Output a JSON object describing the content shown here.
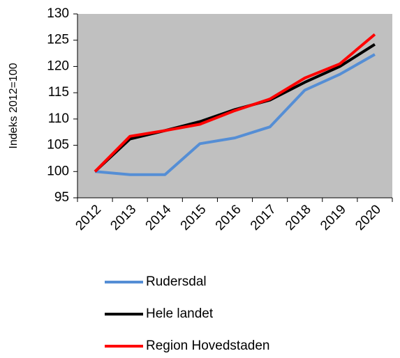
{
  "chart_data": {
    "type": "line",
    "y_label": "Indeks 2012=100",
    "categories": [
      "2012",
      "2013",
      "2014",
      "2015",
      "2016",
      "2017",
      "2018",
      "2019",
      "2020"
    ],
    "series": [
      {
        "name": "Rudersdal",
        "color": "#558ed5",
        "values": [
          100,
          99.4,
          99.4,
          105.3,
          106.4,
          108.5,
          115.5,
          118.5,
          122.3
        ]
      },
      {
        "name": "Hele landet",
        "color": "#000000",
        "values": [
          100,
          106.2,
          107.8,
          109.5,
          111.8,
          113.6,
          117,
          120,
          124.2
        ]
      },
      {
        "name": "Region Hovedstaden",
        "color": "#ff0000",
        "values": [
          100,
          106.7,
          107.8,
          109,
          111.6,
          113.8,
          117.8,
          120.5,
          126.1
        ]
      }
    ],
    "ylim": [
      95,
      130
    ],
    "yticks": [
      95,
      100,
      105,
      110,
      115,
      120,
      125,
      130
    ],
    "grid": false,
    "plot_background": "#c0c0c0",
    "legend": "bottom"
  }
}
